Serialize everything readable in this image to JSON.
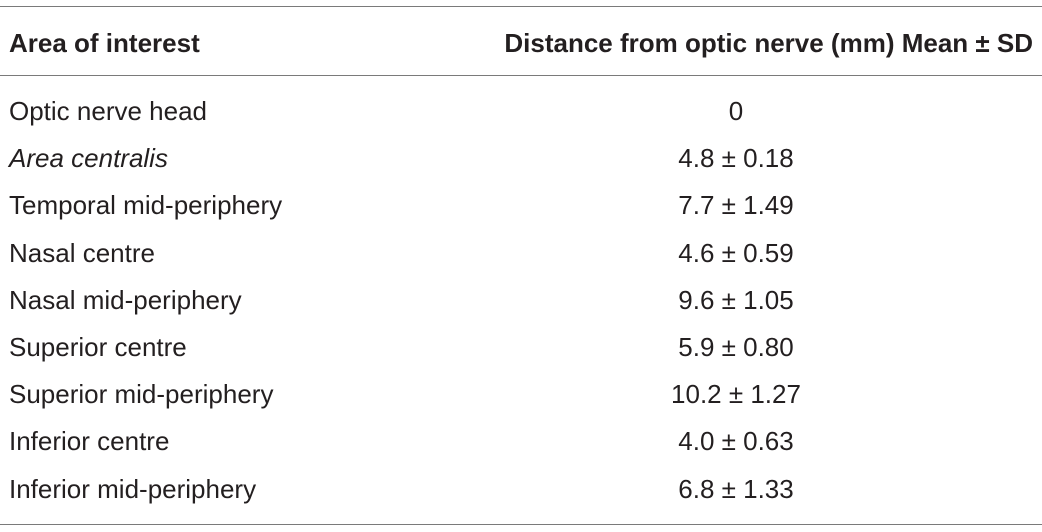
{
  "table": {
    "headers": {
      "area": "Area of interest",
      "distance": "Distance from optic nerve (mm) Mean ± SD"
    },
    "rows": [
      {
        "area": "Optic nerve head",
        "distance": "0",
        "italic": false
      },
      {
        "area": "Area centralis",
        "distance": "4.8 ± 0.18",
        "italic": true
      },
      {
        "area": "Temporal mid-periphery",
        "distance": "7.7 ± 1.49",
        "italic": false
      },
      {
        "area": "Nasal centre",
        "distance": "4.6 ± 0.59",
        "italic": false
      },
      {
        "area": "Nasal mid-periphery",
        "distance": "9.6 ± 1.05",
        "italic": false
      },
      {
        "area": "Superior centre",
        "distance": "5.9 ± 0.80",
        "italic": false
      },
      {
        "area": "Superior mid-periphery",
        "distance": "10.2 ± 1.27",
        "italic": false
      },
      {
        "area": "Inferior centre",
        "distance": "4.0 ± 0.63",
        "italic": false
      },
      {
        "area": "Inferior mid-periphery",
        "distance": "6.8 ± 1.33",
        "italic": false
      }
    ]
  }
}
